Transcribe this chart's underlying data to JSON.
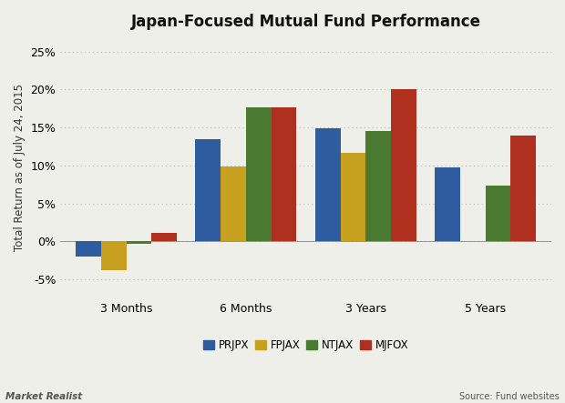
{
  "title": "Japan-Focused Mutual Fund Performance",
  "ylabel": "Total Return as of July 24, 2015",
  "categories": [
    "3 Months",
    "6 Months",
    "3 Years",
    "5 Years"
  ],
  "series": {
    "PRJPX": [
      -2.0,
      13.4,
      14.9,
      9.7
    ],
    "FPJAX": [
      -3.8,
      9.9,
      11.7,
      null
    ],
    "NTJAX": [
      -0.3,
      17.6,
      14.5,
      7.4
    ],
    "MJFOX": [
      1.1,
      17.6,
      20.0,
      13.9
    ]
  },
  "colors": {
    "PRJPX": "#2E5C9E",
    "FPJAX": "#C8A020",
    "NTJAX": "#4A7A32",
    "MJFOX": "#B03020"
  },
  "ylim": [
    -7.5,
    27
  ],
  "yticks": [
    -5,
    0,
    5,
    10,
    15,
    20,
    25
  ],
  "background_color": "#EFEFEA",
  "grid_color": "#BBBBBB",
  "title_fontsize": 12,
  "label_fontsize": 8.5,
  "tick_fontsize": 9,
  "footer_left": "Market Realist",
  "footer_right": "Source: Fund websites"
}
